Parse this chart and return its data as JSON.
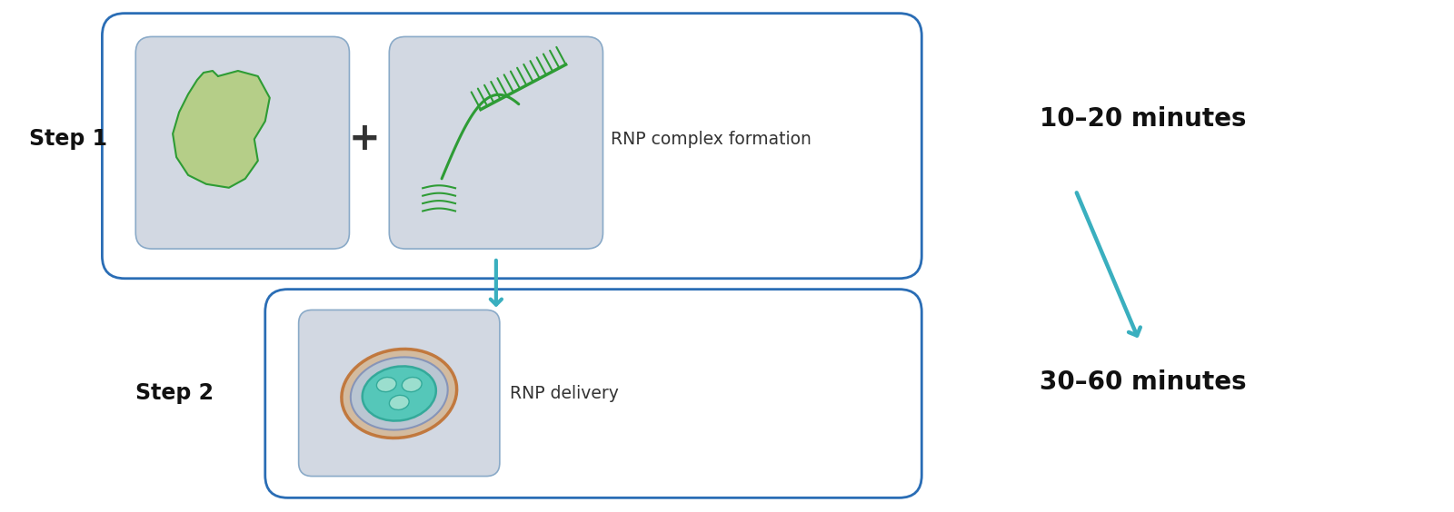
{
  "bg_color": "#ffffff",
  "box_border_color": "#2a6db5",
  "box_fill_color": "#ffffff",
  "icon_bg_color": "#d2d8e2",
  "icon_border_color": "#8aaac8",
  "arrow_color": "#3aafbf",
  "step1_label": "Step 1",
  "step2_label": "Step 2",
  "step1_text": "RNP complex formation",
  "step2_text": "RNP delivery",
  "time1_text": "10–20 minutes",
  "time2_text": "30–60 minutes",
  "plus_symbol": "+",
  "green_dark": "#2e9c35",
  "green_light": "#c8dba0",
  "green_fill": "#b5ce88",
  "cell_brown": "#c07030",
  "cell_purple_edge": "#8090b8",
  "cell_purple_fill": "#b8c8d8",
  "cell_teal_edge": "#30a898",
  "cell_teal_fill": "#50c8b8",
  "cell_oval_fill": "#a0e0d0",
  "figsize": [
    16.0,
    5.64
  ],
  "dpi": 100
}
